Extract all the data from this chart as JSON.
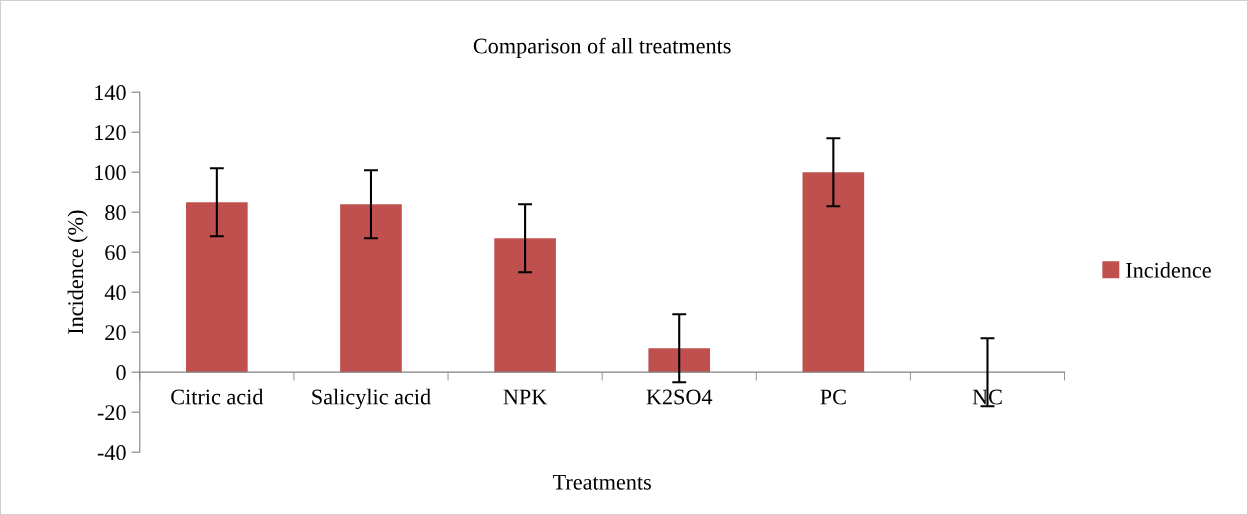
{
  "chart_data": {
    "type": "bar",
    "title": "Comparison of all treatments",
    "xlabel": "Treatments",
    "ylabel": "Incidence (%)",
    "categories": [
      "Citric acid",
      "Salicylic acid",
      "NPK",
      "K2SO4",
      "PC",
      "NC"
    ],
    "series": [
      {
        "name": "Incidence",
        "color": "#c0504d",
        "values": [
          85,
          84,
          67,
          12,
          100,
          0
        ],
        "errors": [
          17,
          17,
          17,
          17,
          17,
          17
        ]
      }
    ],
    "ylim": [
      -40,
      140
    ],
    "yticks": [
      -40,
      -20,
      0,
      20,
      40,
      60,
      80,
      100,
      120,
      140
    ],
    "grid": false,
    "legend": "right"
  }
}
